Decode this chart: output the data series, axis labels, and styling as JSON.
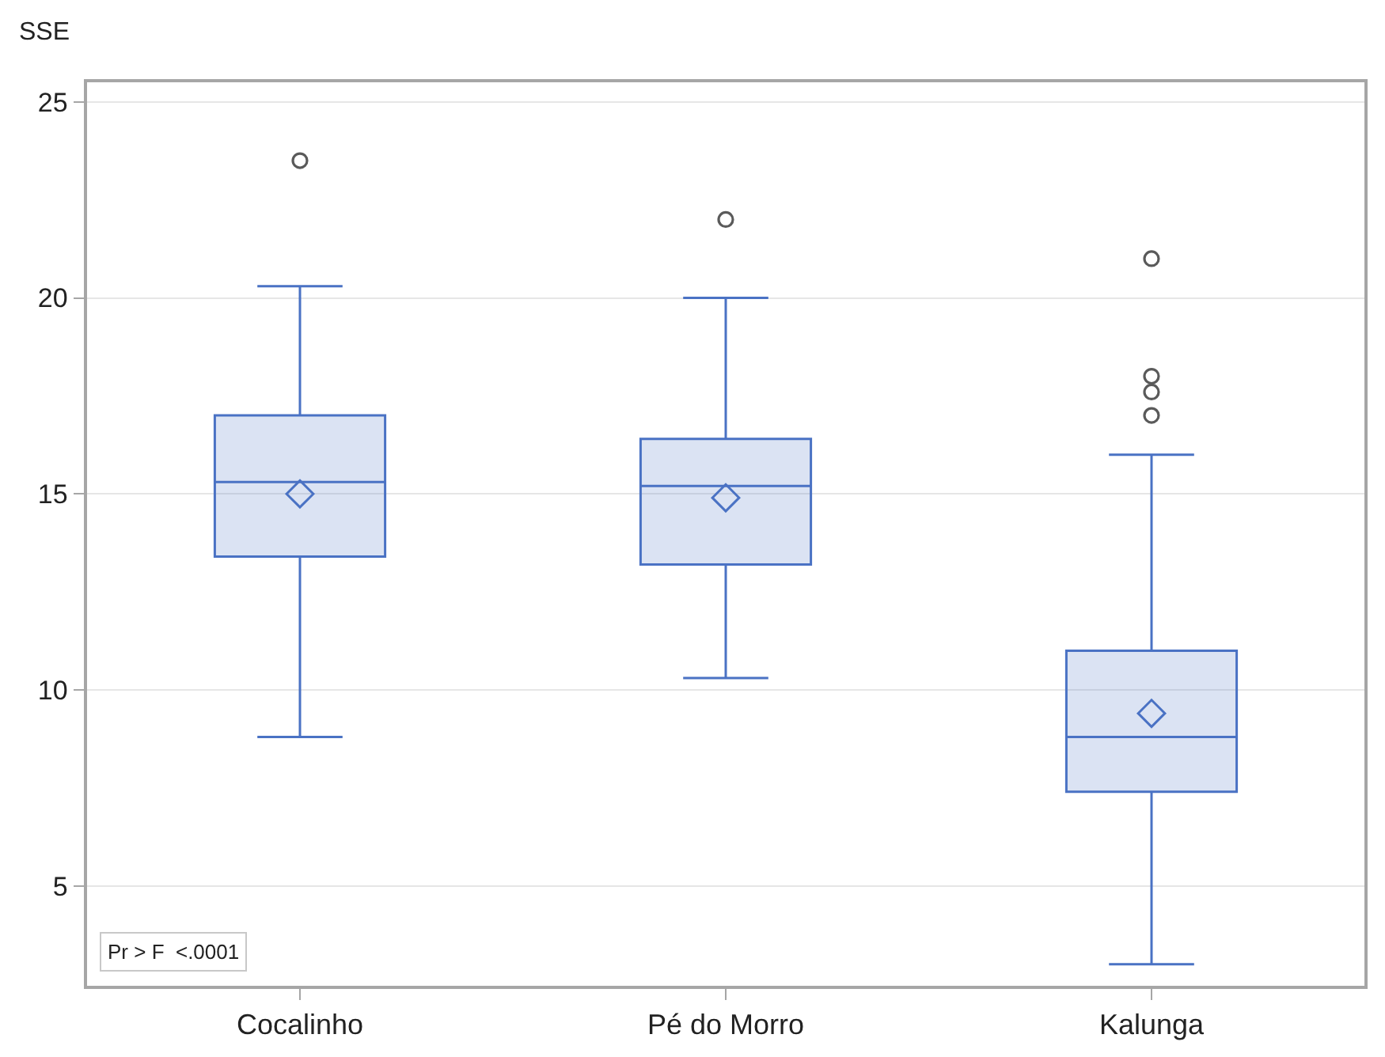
{
  "chart_data": {
    "type": "box",
    "ylabel": "SSE",
    "categories": [
      "Cocalinho",
      "Pé do Morro",
      "Kalunga"
    ],
    "series": [
      {
        "color": "#4a72c4",
        "boxes": [
          {
            "low": 8.8,
            "q1": 13.4,
            "median": 15.3,
            "q3": 17.0,
            "high": 20.3,
            "mean": 15.0,
            "outliers": [
              23.5
            ]
          },
          {
            "low": 10.3,
            "q1": 13.2,
            "median": 15.2,
            "q3": 16.4,
            "high": 20.0,
            "mean": 14.9,
            "outliers": [
              22.0
            ]
          },
          {
            "low": 3.0,
            "q1": 7.4,
            "median": 8.8,
            "q3": 11.0,
            "high": 16.0,
            "mean": 9.4,
            "outliers": [
              21.0,
              18.0,
              17.6,
              17.0
            ]
          }
        ]
      }
    ],
    "ylim": [
      2.45,
      25.5
    ],
    "yticks": [
      5,
      10,
      15,
      20,
      25
    ],
    "grid": "y",
    "annotations": [
      "Pr > F  <.0001"
    ]
  }
}
